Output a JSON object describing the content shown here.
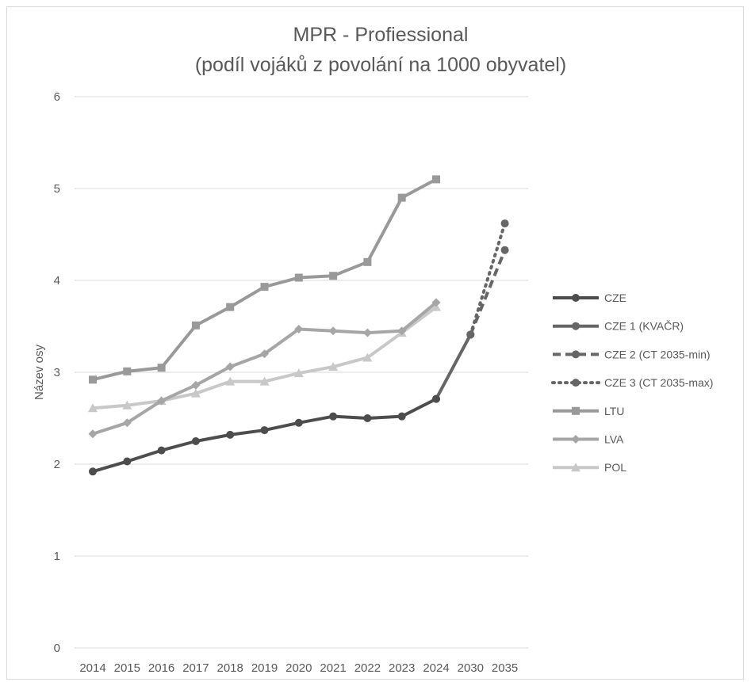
{
  "chart_data": {
    "type": "line",
    "title_line1": "MPR - Profiessional",
    "title_line2": "(podíl vojáků z povolání na 1000 obyvatel)",
    "xlabel": "",
    "ylabel": "Název osy",
    "ylim": [
      0,
      6
    ],
    "y_ticks": [
      "0",
      "1",
      "2",
      "3",
      "4",
      "5",
      "6"
    ],
    "grid": true,
    "legend_position": "right",
    "categories": [
      "2014",
      "2015",
      "2016",
      "2017",
      "2018",
      "2019",
      "2020",
      "2021",
      "2022",
      "2023",
      "2024",
      "2030",
      "2035"
    ],
    "series": [
      {
        "name": "CZE",
        "color": "#4d4d4d",
        "marker": "circle",
        "dash": "solid",
        "values": [
          1.92,
          2.03,
          2.15,
          2.25,
          2.32,
          2.37,
          2.45,
          2.52,
          2.5,
          2.52,
          2.71,
          null,
          null
        ]
      },
      {
        "name": "CZE 1 (KVAČR)",
        "color": "#666666",
        "marker": "circle",
        "dash": "solid",
        "values": [
          null,
          null,
          null,
          null,
          null,
          null,
          null,
          null,
          null,
          null,
          2.71,
          3.41,
          null
        ]
      },
      {
        "name": "CZE 2 (CT 2035-min)",
        "color": "#666666",
        "marker": "circle",
        "dash": "dashed",
        "values": [
          null,
          null,
          null,
          null,
          null,
          null,
          null,
          null,
          null,
          null,
          null,
          3.41,
          4.33
        ]
      },
      {
        "name": "CZE 3 (CT 2035-max)",
        "color": "#666666",
        "marker": "circle",
        "dash": "dotted",
        "values": [
          null,
          null,
          null,
          null,
          null,
          null,
          null,
          null,
          null,
          null,
          null,
          3.41,
          4.62
        ]
      },
      {
        "name": "LTU",
        "color": "#999999",
        "marker": "square",
        "dash": "solid",
        "values": [
          2.92,
          3.01,
          3.05,
          3.51,
          3.71,
          3.93,
          4.03,
          4.05,
          4.2,
          4.9,
          5.1,
          null,
          null
        ]
      },
      {
        "name": "LVA",
        "color": "#a6a6a6",
        "marker": "diamond",
        "dash": "solid",
        "values": [
          2.33,
          2.45,
          2.69,
          2.86,
          3.06,
          3.2,
          3.47,
          3.45,
          3.43,
          3.45,
          3.76,
          null,
          null
        ]
      },
      {
        "name": "POL",
        "color": "#c8c8c8",
        "marker": "triangle",
        "dash": "solid",
        "values": [
          2.61,
          2.64,
          2.69,
          2.77,
          2.9,
          2.9,
          2.99,
          3.06,
          3.16,
          3.43,
          3.71,
          null,
          null
        ]
      }
    ]
  }
}
